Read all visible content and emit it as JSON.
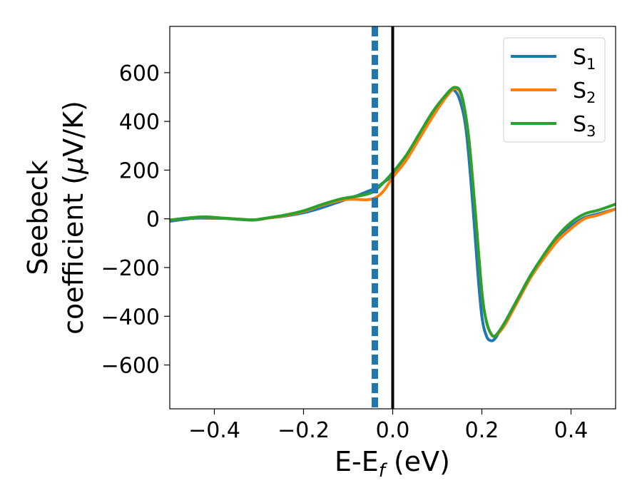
{
  "chart_data": {
    "type": "line",
    "xlabel": {
      "base": "E-E",
      "sub": "f",
      "unit": " (eV)"
    },
    "ylabel": {
      "line1": "Seebeck",
      "line2": "coefficient  (",
      "mu": "μ",
      "unit": "V/K)"
    },
    "xlim": [
      -0.5,
      0.5
    ],
    "ylim": [
      -780,
      790
    ],
    "xticks": [
      -0.4,
      -0.2,
      0.0,
      0.2,
      0.4
    ],
    "xtick_labels": [
      "−0.4",
      "−0.2",
      "0.0",
      "0.2",
      "0.4"
    ],
    "yticks": [
      -600,
      -400,
      -200,
      0,
      200,
      400,
      600
    ],
    "ytick_labels": [
      "−600",
      "−400",
      "−200",
      "0",
      "200",
      "400",
      "600"
    ],
    "grid": false,
    "legend_position": "top-right",
    "vertical_lines": [
      {
        "x": 0.0,
        "style": "solid",
        "color": "#000000"
      },
      {
        "x": -0.04,
        "style": "dashed",
        "color": "#1f77b4"
      }
    ],
    "series": [
      {
        "name": "S",
        "sub": "1",
        "color": "#1f77b4",
        "x": [
          -0.5,
          -0.45,
          -0.42,
          -0.38,
          -0.34,
          -0.31,
          -0.28,
          -0.24,
          -0.2,
          -0.16,
          -0.12,
          -0.08,
          -0.06,
          -0.04,
          -0.02,
          0.0,
          0.03,
          0.06,
          0.09,
          0.12,
          0.135,
          0.15,
          0.165,
          0.18,
          0.19,
          0.2,
          0.21,
          0.22,
          0.23,
          0.25,
          0.28,
          0.31,
          0.34,
          0.37,
          0.4,
          0.43,
          0.46,
          0.5
        ],
        "y": [
          -10,
          2,
          3,
          2,
          -3,
          -5,
          3,
          12,
          25,
          45,
          70,
          95,
          110,
          125,
          150,
          180,
          250,
          340,
          430,
          510,
          530,
          490,
          360,
          50,
          -200,
          -400,
          -480,
          -500,
          -490,
          -430,
          -330,
          -230,
          -150,
          -80,
          -30,
          5,
          20,
          40
        ]
      },
      {
        "name": "S",
        "sub": "2",
        "color": "#ff7f0e",
        "x": [
          -0.5,
          -0.45,
          -0.42,
          -0.38,
          -0.34,
          -0.31,
          -0.28,
          -0.24,
          -0.2,
          -0.16,
          -0.12,
          -0.1,
          -0.08,
          -0.06,
          -0.04,
          -0.02,
          0.0,
          0.03,
          0.06,
          0.09,
          0.12,
          0.14,
          0.155,
          0.17,
          0.185,
          0.2,
          0.21,
          0.22,
          0.23,
          0.25,
          0.28,
          0.31,
          0.34,
          0.37,
          0.4,
          0.43,
          0.46,
          0.5
        ],
        "y": [
          -5,
          5,
          7,
          3,
          -2,
          -4,
          3,
          14,
          30,
          55,
          75,
          80,
          80,
          78,
          85,
          115,
          170,
          240,
          330,
          420,
          500,
          535,
          500,
          340,
          40,
          -300,
          -420,
          -470,
          -480,
          -440,
          -340,
          -240,
          -160,
          -90,
          -40,
          0,
          15,
          40
        ]
      },
      {
        "name": "S",
        "sub": "3",
        "color": "#2ca02c",
        "x": [
          -0.5,
          -0.45,
          -0.42,
          -0.38,
          -0.34,
          -0.31,
          -0.28,
          -0.24,
          -0.2,
          -0.16,
          -0.12,
          -0.09,
          -0.06,
          -0.04,
          -0.02,
          0.0,
          0.03,
          0.06,
          0.09,
          0.12,
          0.14,
          0.155,
          0.17,
          0.185,
          0.2,
          0.21,
          0.22,
          0.23,
          0.25,
          0.28,
          0.31,
          0.34,
          0.37,
          0.4,
          0.43,
          0.46,
          0.5
        ],
        "y": [
          -5,
          5,
          8,
          3,
          -2,
          -4,
          4,
          16,
          33,
          58,
          80,
          90,
          100,
          115,
          150,
          190,
          260,
          350,
          440,
          510,
          540,
          505,
          340,
          30,
          -300,
          -420,
          -470,
          -480,
          -430,
          -330,
          -230,
          -145,
          -70,
          -15,
          20,
          35,
          60
        ]
      }
    ]
  }
}
